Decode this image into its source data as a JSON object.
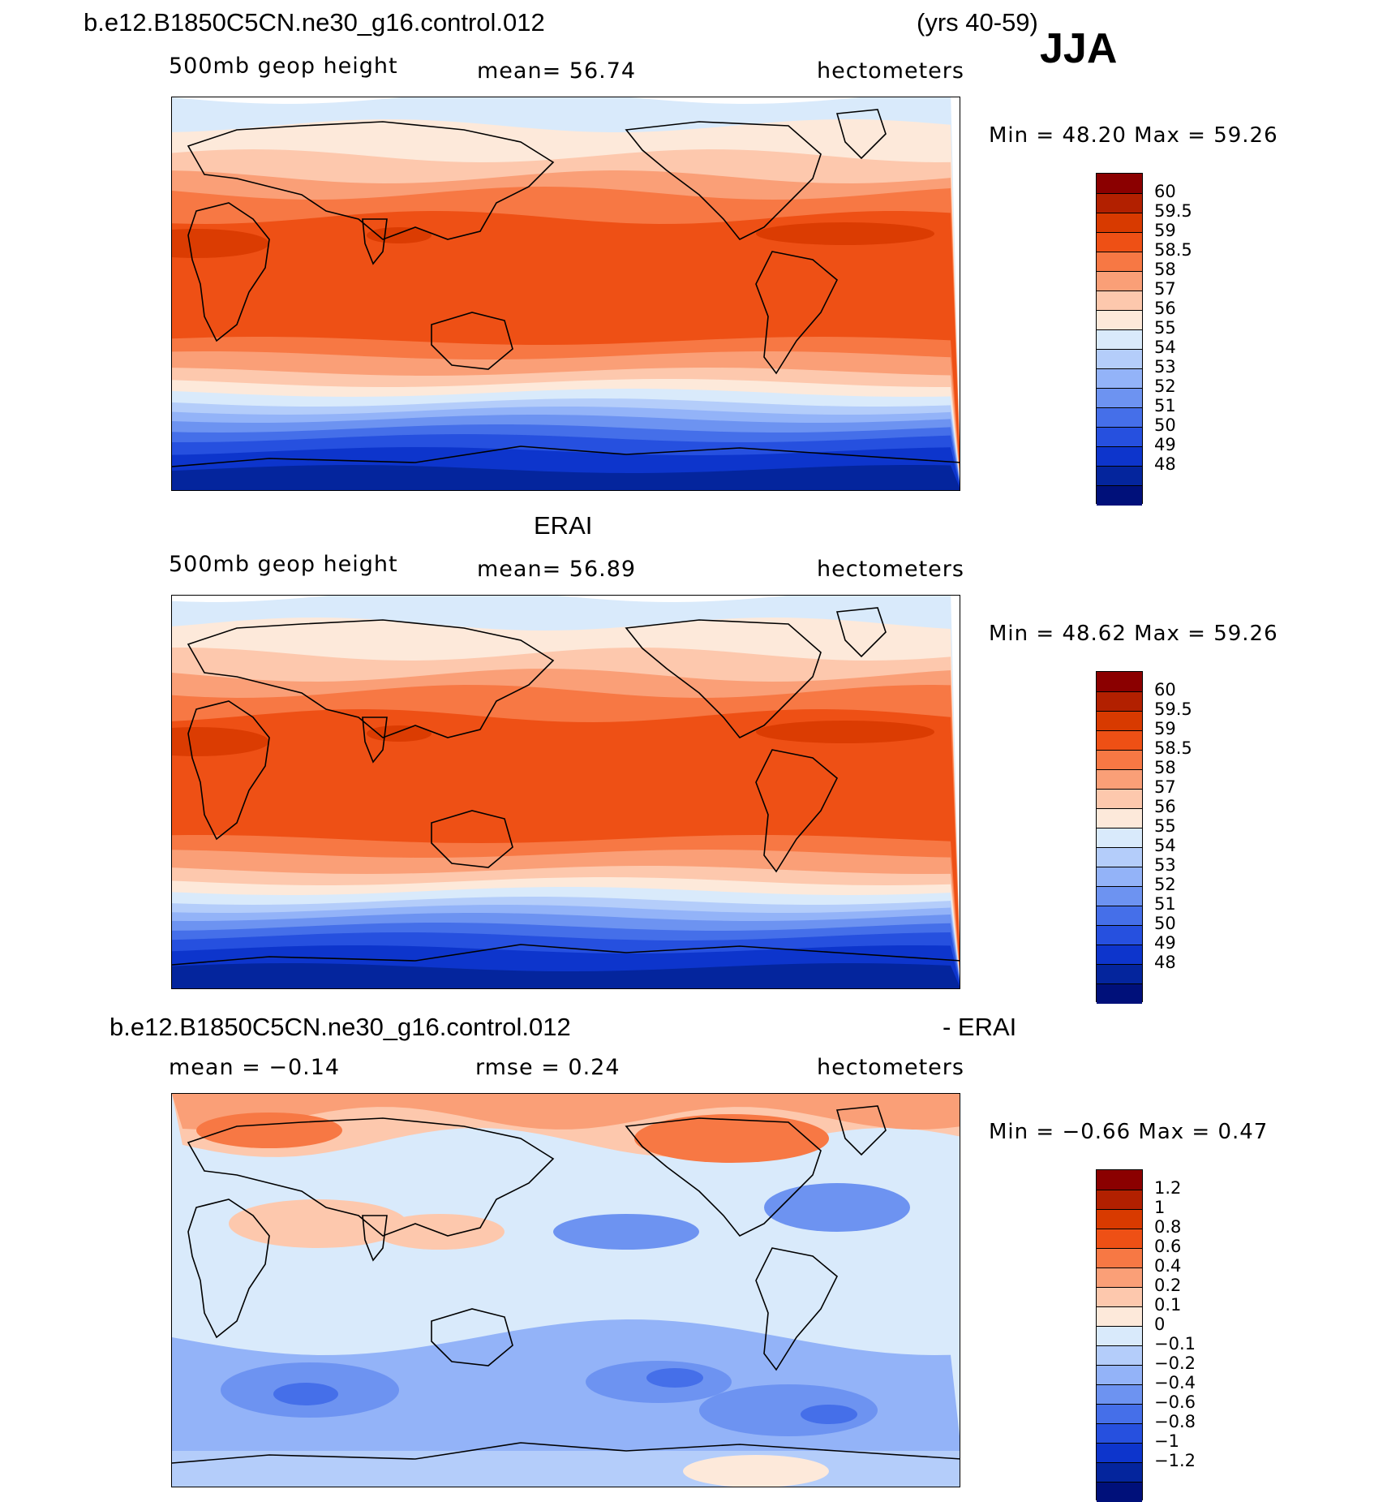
{
  "header": {
    "case_title": "b.e12.B1850C5CN.ne30_g16.control.012",
    "years": "(yrs 40-59)",
    "season": "JJA"
  },
  "panels": [
    {
      "id": "model",
      "subtitle_left": "500mb geop height",
      "subtitle_mid": "mean=   56.74",
      "subtitle_right": "hectometers",
      "minmax": "Min =   48.20 Max =   59.26",
      "map_type": "absolute",
      "variant": 0,
      "colorbar": {
        "labels": [
          "60",
          "59.5",
          "59",
          "58.5",
          "58",
          "57",
          "56",
          "55",
          "54",
          "53",
          "52",
          "51",
          "50",
          "49",
          "48"
        ],
        "colors": [
          "#8b0000",
          "#b22000",
          "#d83a00",
          "#ee5015",
          "#f77844",
          "#fa9f77",
          "#fdc8ad",
          "#fde9da",
          "#d9eafb",
          "#b4cdfa",
          "#93b3f8",
          "#6d93f1",
          "#456fe9",
          "#2650df",
          "#0d35cc",
          "#04259d",
          "#00107a"
        ]
      }
    },
    {
      "id": "obs",
      "title": "ERAI",
      "subtitle_left": "500mb geop height",
      "subtitle_mid": "mean=   56.89",
      "subtitle_right": "hectometers",
      "minmax": "Min =   48.62 Max =   59.26",
      "map_type": "absolute",
      "variant": 1,
      "colorbar": {
        "labels": [
          "60",
          "59.5",
          "59",
          "58.5",
          "58",
          "57",
          "56",
          "55",
          "54",
          "53",
          "52",
          "51",
          "50",
          "49",
          "48"
        ],
        "colors": [
          "#8b0000",
          "#b22000",
          "#d83a00",
          "#ee5015",
          "#f77844",
          "#fa9f77",
          "#fdc8ad",
          "#fde9da",
          "#d9eafb",
          "#b4cdfa",
          "#93b3f8",
          "#6d93f1",
          "#456fe9",
          "#2650df",
          "#0d35cc",
          "#04259d",
          "#00107a"
        ]
      }
    },
    {
      "id": "diff",
      "title_left": "b.e12.B1850C5CN.ne30_g16.control.012",
      "title_right": "- ERAI",
      "subtitle_left": "mean =   −0.14",
      "subtitle_mid": "rmse =    0.24",
      "subtitle_right": "hectometers",
      "minmax": "Min =   −0.66 Max =    0.47",
      "map_type": "difference",
      "variant": 2,
      "colorbar": {
        "labels": [
          "1.2",
          "1",
          "0.8",
          "0.6",
          "0.4",
          "0.2",
          "0.1",
          "0",
          "−0.1",
          "−0.2",
          "−0.4",
          "−0.6",
          "−0.8",
          "−1",
          "−1.2"
        ],
        "colors": [
          "#8b0000",
          "#b22000",
          "#d83a00",
          "#ee5015",
          "#f77844",
          "#fa9f77",
          "#fdc8ad",
          "#fde9da",
          "#d9eafb",
          "#b4cdfa",
          "#93b3f8",
          "#6d93f1",
          "#456fe9",
          "#2650df",
          "#0d35cc",
          "#04259d",
          "#00107a"
        ]
      }
    }
  ]
}
